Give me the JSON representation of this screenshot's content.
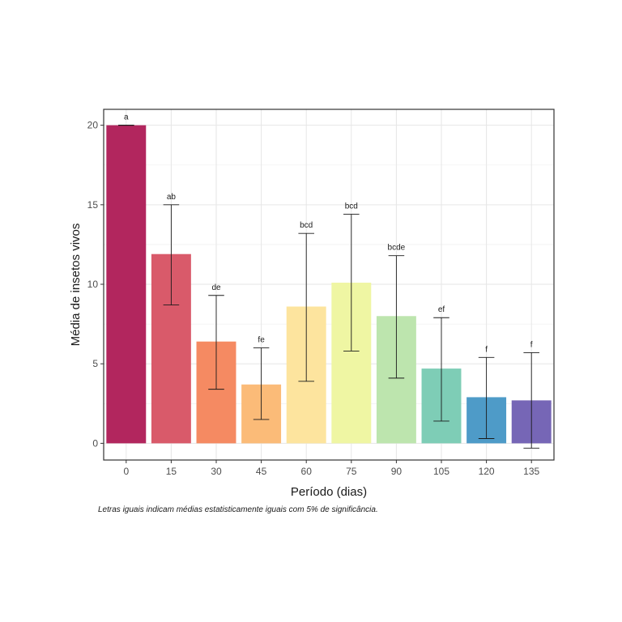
{
  "chart_data": {
    "type": "bar",
    "categories": [
      "0",
      "15",
      "30",
      "45",
      "60",
      "75",
      "90",
      "105",
      "120",
      "135"
    ],
    "values": [
      20.0,
      11.9,
      6.4,
      3.7,
      8.6,
      10.1,
      8.0,
      4.7,
      2.9,
      2.7
    ],
    "error_low": [
      20.0,
      8.7,
      3.4,
      1.5,
      3.9,
      5.8,
      4.1,
      1.4,
      0.3,
      -0.3
    ],
    "error_high": [
      20.0,
      15.0,
      9.3,
      6.0,
      13.2,
      14.4,
      11.8,
      7.9,
      5.4,
      5.7
    ],
    "significance_labels": [
      "a",
      "ab",
      "de",
      "fe",
      "bcd",
      "bcd",
      "bcde",
      "ef",
      "f",
      "f"
    ],
    "colors": [
      "#b2265e",
      "#d95a6a",
      "#f58a62",
      "#fbbb78",
      "#fde49e",
      "#eff6a3",
      "#bde5ae",
      "#7ecdb6",
      "#4e9bc8",
      "#7666b6"
    ],
    "xlabel": "Período (dias)",
    "ylabel": "Média de insetos vivos",
    "yticks": [
      0,
      5,
      10,
      15,
      20
    ],
    "ylim": [
      -1.05,
      21.0
    ],
    "grid": true,
    "caption": "Letras iguais indicam médias estatisticamente iguais com 5% de significância."
  }
}
